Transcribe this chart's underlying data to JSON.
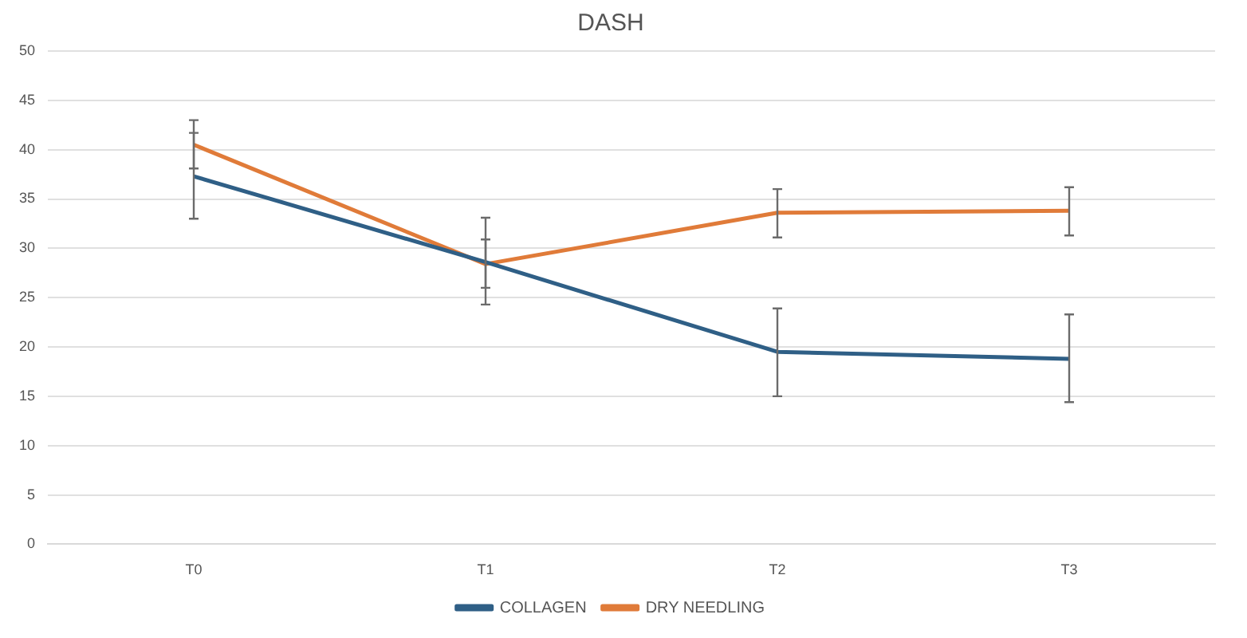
{
  "chart_data": {
    "type": "line",
    "title": "DASH",
    "categories": [
      "T0",
      "T1",
      "T2",
      "T3"
    ],
    "series": [
      {
        "name": "COLLAGEN",
        "color": "#2f5f86",
        "values": [
          37.3,
          28.6,
          19.5,
          18.8
        ],
        "errors": [
          [
            33.0,
            41.7
          ],
          [
            24.3,
            33.1
          ],
          [
            15.0,
            23.9
          ],
          [
            14.4,
            23.3
          ]
        ]
      },
      {
        "name": "DRY NEEDLING",
        "color": "#e07b39",
        "values": [
          40.5,
          28.4,
          33.6,
          33.8
        ],
        "errors": [
          [
            38.1,
            43.0
          ],
          [
            26.0,
            30.9
          ],
          [
            31.1,
            36.0
          ],
          [
            31.3,
            36.2
          ]
        ]
      }
    ],
    "ylim": [
      0,
      50
    ],
    "yticks": [
      0,
      5,
      10,
      15,
      20,
      25,
      30,
      35,
      40,
      45,
      50
    ],
    "grid": "y",
    "legend": "bottom",
    "marker": "none",
    "line_style": "solid"
  }
}
